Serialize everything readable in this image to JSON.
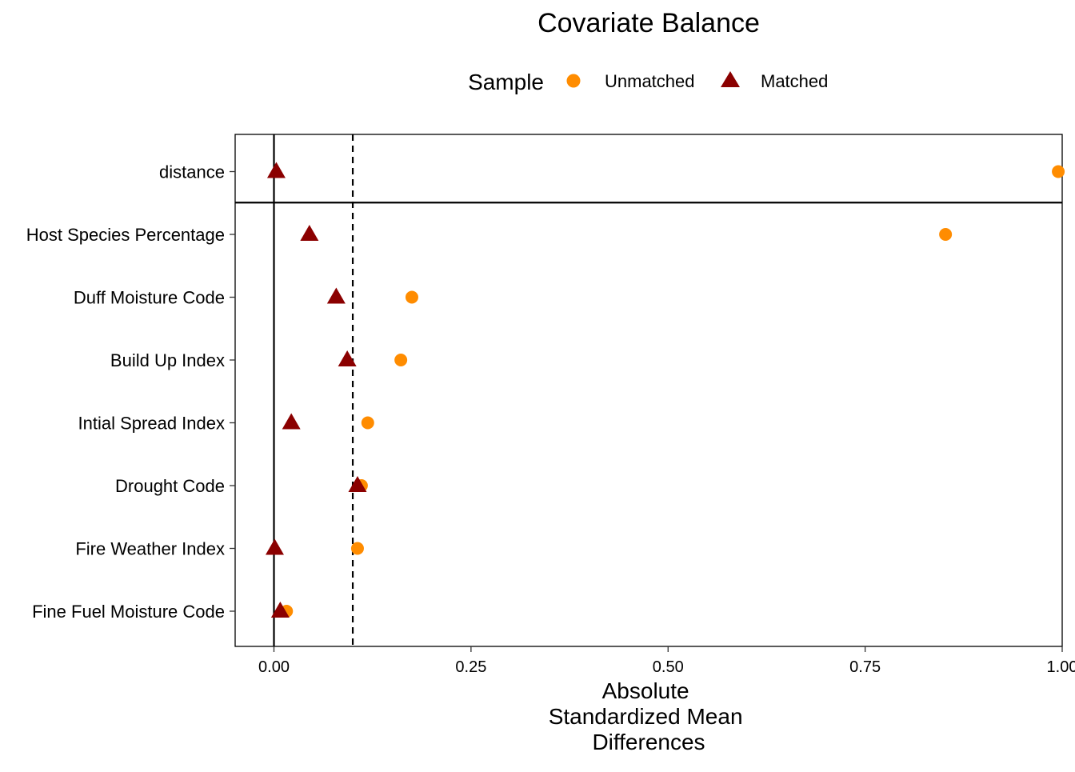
{
  "chart_data": {
    "type": "scatter",
    "title": "Covariate Balance",
    "legend": {
      "title": "Sample",
      "position": "top",
      "entries": [
        {
          "label": "Unmatched",
          "shape": "circle",
          "color": "#FF8C00"
        },
        {
          "label": "Matched",
          "shape": "triangle",
          "color": "#8B0000"
        }
      ]
    },
    "xlabel_lines": [
      "Absolute",
      "Standardized Mean",
      "Differences"
    ],
    "xlim": [
      -0.05,
      1.0
    ],
    "x_ticks": [
      0.0,
      0.25,
      0.5,
      0.75,
      1.0
    ],
    "x_tick_labels": [
      "0.00",
      "0.25",
      "0.50",
      "0.75",
      "1.00"
    ],
    "threshold": 0.1,
    "grid": false,
    "categories": [
      "distance",
      "Host Species Percentage",
      "Duff Moisture Code",
      "Build Up Index",
      "Intial Spread Index",
      "Drought Code",
      "Fire Weather Index",
      "Fine Fuel Moisture Code"
    ],
    "series": [
      {
        "name": "Unmatched",
        "color": "#FF8C00",
        "shape": "circle",
        "values": [
          0.995,
          0.852,
          0.175,
          0.161,
          0.119,
          0.111,
          0.106,
          0.016
        ]
      },
      {
        "name": "Matched",
        "color": "#8B0000",
        "shape": "triangle",
        "values": [
          0.003,
          0.045,
          0.079,
          0.093,
          0.022,
          0.106,
          0.001,
          0.008
        ]
      }
    ]
  }
}
